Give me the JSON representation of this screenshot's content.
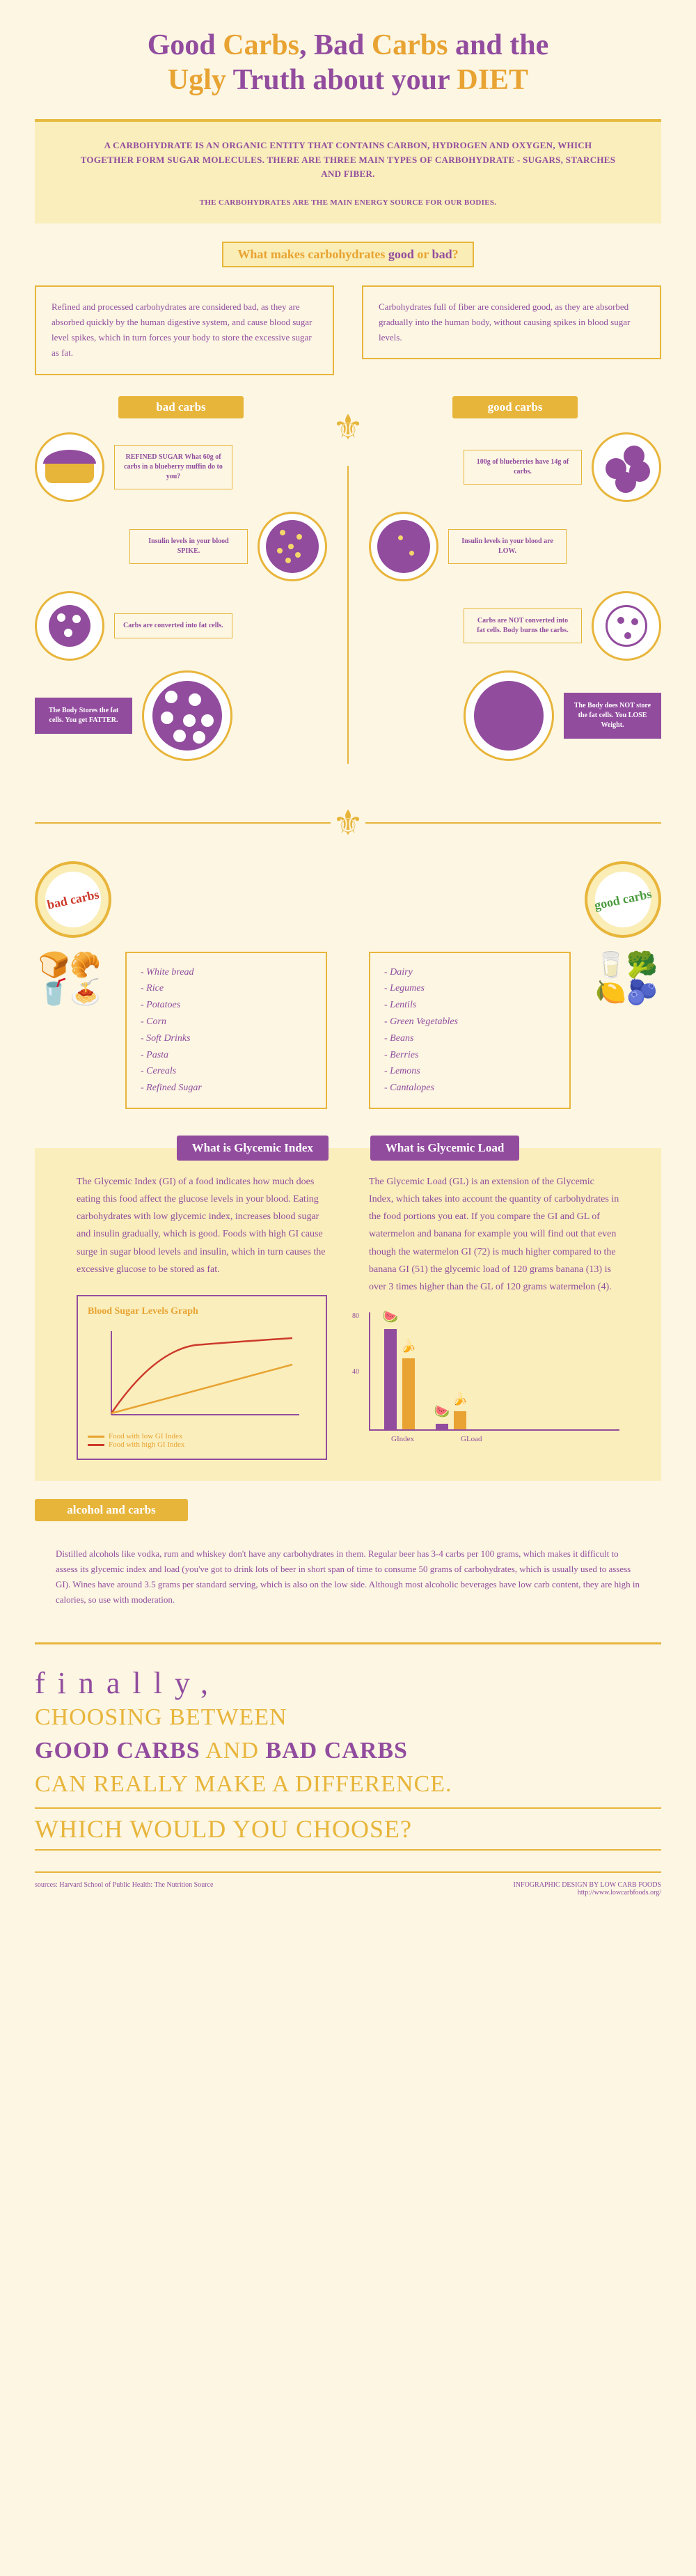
{
  "title": {
    "line1_a": "Good ",
    "line1_b": "Carbs",
    "line1_c": ", Bad ",
    "line1_d": "Carbs",
    "line1_e": " and the",
    "line2_a": "Ugly ",
    "line2_b": "Truth about your ",
    "line2_c": "DIET"
  },
  "intro": {
    "def": "A CARBOHYDRATE IS AN ORGANIC ENTITY THAT CONTAINS CARBON, HYDROGEN AND OXYGEN, WHICH TOGETHER FORM SUGAR MOLECULES. THERE ARE THREE MAIN TYPES OF CARBOHYDRATE - SUGARS, STARCHES AND FIBER.",
    "sub": "THE CARBOHYDRATES ARE THE MAIN ENERGY SOURCE FOR OUR BODIES."
  },
  "section1": {
    "label_a": "What makes carbohydrates ",
    "label_good": "good",
    "label_or": " or ",
    "label_bad": "bad",
    "label_q": "?",
    "bad_text": "Refined and processed carbohydrates are considered bad, as they are absorbed quickly by the human digestive system, and cause blood sugar level spikes, which in turn forces your body to store the excessive sugar as fat.",
    "good_text": "Carbohydrates full of fiber are considered good, as they are absorbed gradually into the human body, without causing spikes in blood sugar levels."
  },
  "flow": {
    "bad_label": "bad carbs",
    "good_label": "good carbs",
    "bad_steps": [
      "REFINED SUGAR\nWhat 60g of carbs in a blueberry muffin do to you?",
      "Insulin levels in your blood SPIKE.",
      "Carbs are converted into fat cells."
    ],
    "bad_outcome": "The Body Stores the fat cells. You get FATTER.",
    "good_steps": [
      "100g of blueberries have 14g of carbs.",
      "Insulin levels in your blood are LOW.",
      "Carbs are NOT converted into fat cells. Body burns the carbs."
    ],
    "good_outcome": "The Body does NOT store the fat cells. You LOSE Weight."
  },
  "lists": {
    "bad_badge": "bad carbs",
    "good_badge": "good carbs",
    "bad": [
      "White bread",
      "Rice",
      "Potatoes",
      "Corn",
      "Soft Drinks",
      "Pasta",
      "Cereals",
      "Refined Sugar"
    ],
    "good": [
      "Dairy",
      "Legumes",
      "Lentils",
      "Green Vegetables",
      "Beans",
      "Berries",
      "Lemons",
      "Cantalopes"
    ]
  },
  "gi": {
    "label": "What is Glycemic Index",
    "text": "The Glycemic Index (GI) of a food indicates how much does eating this food affect the glucose levels in your blood. Eating carbohydrates with low glycemic index, increases blood sugar and insulin gradually, which is good. Foods with high GI cause surge in sugar blood levels and insulin, which in turn causes the excessive glucose to be stored as fat.",
    "graph_title": "Blood Sugar Levels Graph",
    "legend_low": "Food with low GI Index",
    "legend_high": "Food with high GI Index",
    "low_color": "#e8a332",
    "high_color": "#cc3a2b"
  },
  "gl": {
    "label": "What is Glycemic Load",
    "text": "The Glycemic Load (GL) is an extension of the Glycemic Index, which takes into account the quantity of carbohydrates in the food portions you eat. If you compare the GI and GL of watermelon and banana for example you will find out that even though the watermelon GI (72) is much higher compared to the banana GI (51) the glycemic load of 120 grams banana (13) is over 3 times higher than the GL of 120 grams watermelon (4).",
    "chart": {
      "y_ticks": [
        "80",
        "40"
      ],
      "groups": [
        {
          "label": "GIndex",
          "bars": [
            {
              "h": 144,
              "fruit": "🍉",
              "color": "#924c9e"
            },
            {
              "h": 102,
              "fruit": "🍌",
              "color": "#e8a332"
            }
          ]
        },
        {
          "label": "GLoad",
          "bars": [
            {
              "h": 8,
              "fruit": "🍉",
              "color": "#924c9e"
            },
            {
              "h": 26,
              "fruit": "🍌",
              "color": "#e8a332"
            }
          ]
        }
      ]
    }
  },
  "alcohol": {
    "label": "alcohol and carbs",
    "text": "Distilled alcohols like vodka, rum and whiskey don't have any carbohydrates in them. Regular beer has 3-4 carbs per 100 grams, which makes it difficult to assess its glycemic index and load (you've got to drink lots of beer in short span of time to consume 50 grams of carbohydrates, which is usually used to assess GI). Wines have around 3.5 grams per standard serving, which is also on the low side. Although most alcoholic beverages have low carb content, they are high in calories, so use with moderation."
  },
  "finally": {
    "f1": "finally,",
    "l1": "CHOOSING BETWEEN",
    "good": "GOOD CARBS",
    "and": " AND ",
    "bad": "BAD CARBS",
    "l3": "CAN REALLY MAKE A DIFFERENCE.",
    "which": "WHICH WOULD YOU CHOOSE?"
  },
  "footer": {
    "left": "sources: Harvard School of Public Health: The Nutrition Source",
    "right1": "INFOGRAPHIC DESIGN BY LOW CARB FOODS",
    "right2": "http://www.lowcarbfoods.org/"
  },
  "colors": {
    "purple": "#924c9e",
    "gold": "#e8b53b",
    "orange": "#e8a332",
    "cream": "#faeebc",
    "bg": "#fcf6e3"
  }
}
